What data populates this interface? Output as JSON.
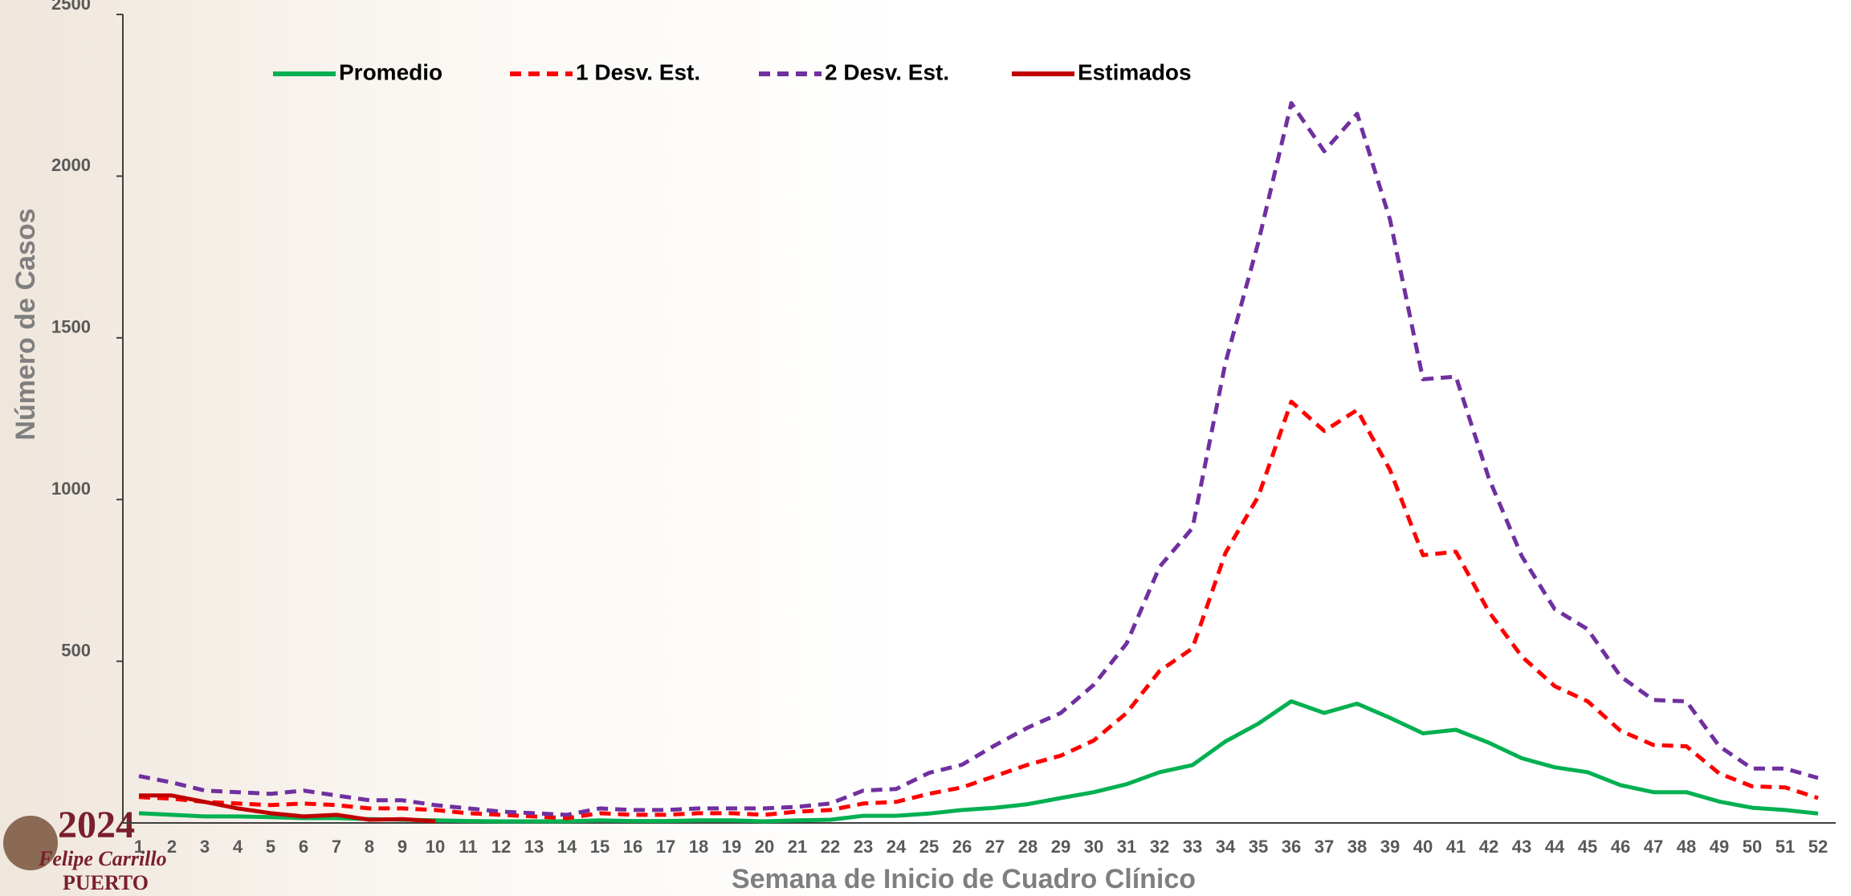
{
  "chart_data": {
    "type": "line",
    "y_label": "Número de Casos",
    "x_label": "Semana de Inicio de Cuadro Clínico",
    "categories": [
      "1",
      "2",
      "3",
      "4",
      "5",
      "6",
      "7",
      "8",
      "9",
      "10",
      "11",
      "12",
      "13",
      "14",
      "15",
      "16",
      "17",
      "18",
      "19",
      "20",
      "21",
      "22",
      "23",
      "24",
      "25",
      "26",
      "27",
      "28",
      "29",
      "30",
      "31",
      "32",
      "33",
      "34",
      "35",
      "36",
      "37",
      "38",
      "39",
      "40",
      "41",
      "42",
      "43",
      "44",
      "45",
      "46",
      "47",
      "48",
      "49",
      "50",
      "51",
      "52"
    ],
    "ylim": [
      0,
      2500
    ],
    "yticks": [
      500,
      1000,
      1500,
      2000,
      2500
    ],
    "series": [
      {
        "name": "Promedio",
        "color": "#00b050",
        "dashed": false,
        "values": [
          30,
          25,
          20,
          20,
          18,
          15,
          15,
          12,
          10,
          8,
          6,
          5,
          5,
          5,
          8,
          6,
          6,
          8,
          8,
          5,
          8,
          10,
          22,
          22,
          29,
          40,
          47,
          58,
          77,
          95,
          120,
          157,
          179,
          252,
          307,
          376,
          340,
          369,
          325,
          277,
          288,
          248,
          200,
          172,
          157,
          117,
          95,
          95,
          66,
          47,
          40,
          29
        ]
      },
      {
        "name": "1 Desv. Est.",
        "color": "#ff0000",
        "dashed": true,
        "values": [
          80,
          75,
          65,
          60,
          55,
          60,
          55,
          45,
          45,
          40,
          30,
          25,
          20,
          15,
          30,
          25,
          25,
          30,
          30,
          25,
          35,
          40,
          60,
          65,
          90,
          110,
          145,
          180,
          208,
          255,
          340,
          470,
          540,
          835,
          1010,
          1303,
          1212,
          1277,
          1091,
          828,
          839,
          653,
          515,
          423,
          376,
          285,
          241,
          237,
          153,
          113,
          110,
          77
        ]
      },
      {
        "name": "2 Desv. Est.",
        "color": "#7030a0",
        "dashed": true,
        "values": [
          145,
          125,
          100,
          95,
          90,
          100,
          85,
          70,
          70,
          55,
          45,
          35,
          30,
          25,
          45,
          40,
          40,
          45,
          45,
          45,
          50,
          60,
          100,
          105,
          155,
          180,
          240,
          295,
          340,
          427,
          555,
          792,
          912,
          1423,
          1796,
          2226,
          2077,
          2193,
          1865,
          1372,
          1380,
          1066,
          825,
          661,
          599,
          453,
          380,
          376,
          237,
          168,
          168,
          139
        ]
      },
      {
        "name": "Estimados",
        "color": "#c00000",
        "dashed": false,
        "values": [
          85,
          85,
          65,
          45,
          30,
          20,
          25,
          10,
          12,
          5,
          null,
          null,
          null,
          null,
          null,
          null,
          null,
          null,
          null,
          null,
          null,
          null,
          null,
          null,
          null,
          null,
          null,
          null,
          null,
          null,
          null,
          null,
          null,
          null,
          null,
          null,
          null,
          null,
          null,
          null,
          null,
          null,
          null,
          null,
          null,
          null,
          null,
          null,
          null,
          null,
          null,
          null
        ]
      }
    ]
  },
  "logo": {
    "year": "2024",
    "name": "Felipe Carrillo",
    "place": "PUERTO"
  }
}
